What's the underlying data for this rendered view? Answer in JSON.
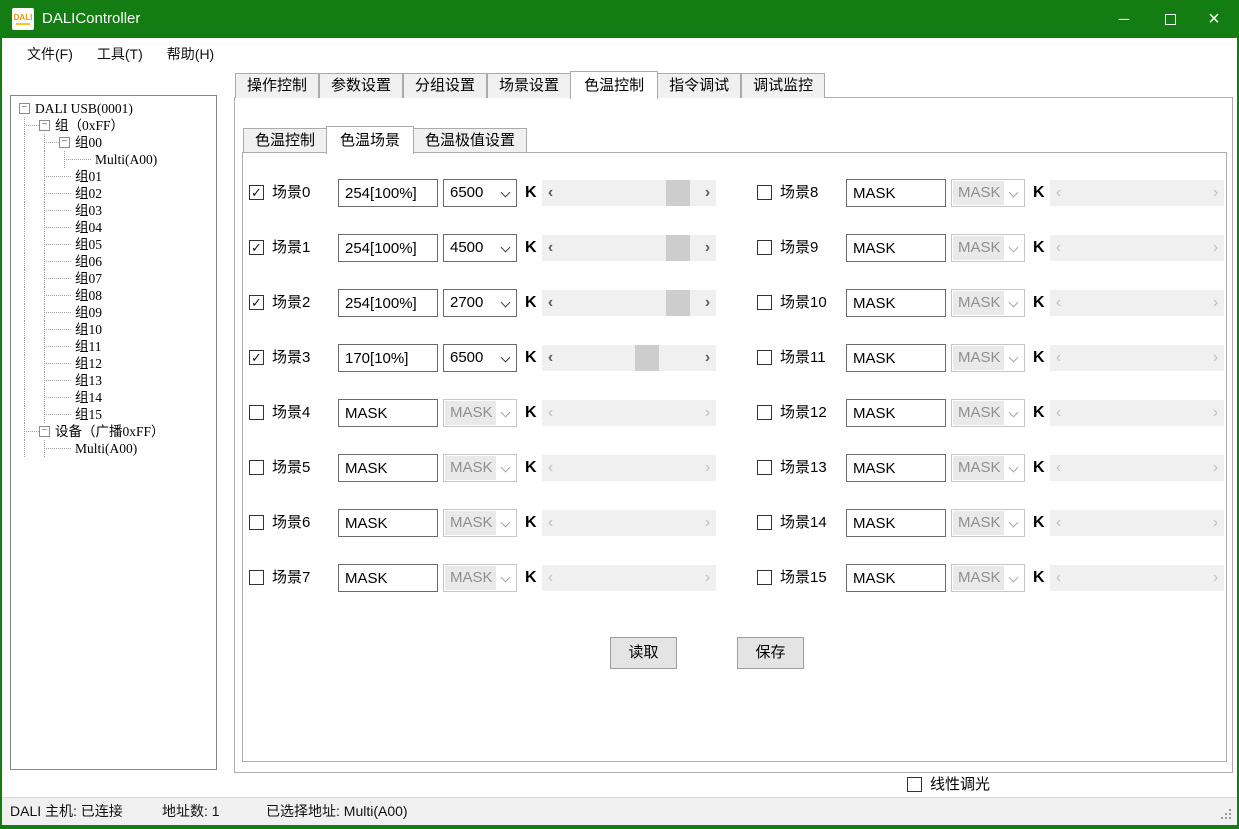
{
  "window": {
    "title": "DALIController",
    "logo_text": "DALI",
    "controls": {
      "minimize": "─",
      "close": "×"
    }
  },
  "menu": {
    "items": [
      "文件(F)",
      "工具(T)",
      "帮助(H)"
    ]
  },
  "tree": {
    "items": [
      {
        "label": "DALI USB(0001)",
        "depth": 0,
        "expander": true
      },
      {
        "label": "组（0xFF）",
        "depth": 1,
        "expander": true
      },
      {
        "label": "组00",
        "depth": 2,
        "expander": true
      },
      {
        "label": "Multi(A00)",
        "depth": 3,
        "expander": false
      },
      {
        "label": "组01",
        "depth": 2,
        "expander": false
      },
      {
        "label": "组02",
        "depth": 2,
        "expander": false
      },
      {
        "label": "组03",
        "depth": 2,
        "expander": false
      },
      {
        "label": "组04",
        "depth": 2,
        "expander": false
      },
      {
        "label": "组05",
        "depth": 2,
        "expander": false
      },
      {
        "label": "组06",
        "depth": 2,
        "expander": false
      },
      {
        "label": "组07",
        "depth": 2,
        "expander": false
      },
      {
        "label": "组08",
        "depth": 2,
        "expander": false
      },
      {
        "label": "组09",
        "depth": 2,
        "expander": false
      },
      {
        "label": "组10",
        "depth": 2,
        "expander": false
      },
      {
        "label": "组11",
        "depth": 2,
        "expander": false
      },
      {
        "label": "组12",
        "depth": 2,
        "expander": false
      },
      {
        "label": "组13",
        "depth": 2,
        "expander": false
      },
      {
        "label": "组14",
        "depth": 2,
        "expander": false
      },
      {
        "label": "组15",
        "depth": 2,
        "expander": false
      },
      {
        "label": "设备（广播0xFF）",
        "depth": 1,
        "expander": true
      },
      {
        "label": "Multi(A00)",
        "depth": 2,
        "expander": false
      }
    ]
  },
  "tabs": {
    "items": [
      "操作控制",
      "参数设置",
      "分组设置",
      "场景设置",
      "色温控制",
      "指令调试",
      "调试监控"
    ],
    "active_index": 4
  },
  "subtabs": {
    "items": [
      "色温控制",
      "色温场景",
      "色温极值设置"
    ],
    "active_index": 1
  },
  "panel": {
    "unit": "K",
    "scenes": [
      {
        "label": "场景0",
        "checked": true,
        "level": "254[100%]",
        "temp": "6500",
        "enabled": true,
        "scroll": 0.93
      },
      {
        "label": "场景1",
        "checked": true,
        "level": "254[100%]",
        "temp": "4500",
        "enabled": true,
        "scroll": 0.93
      },
      {
        "label": "场景2",
        "checked": true,
        "level": "254[100%]",
        "temp": "2700",
        "enabled": true,
        "scroll": 0.93
      },
      {
        "label": "场景3",
        "checked": true,
        "level": "170[10%]",
        "temp": "6500",
        "enabled": true,
        "scroll": 0.66
      },
      {
        "label": "场景4",
        "checked": false,
        "level": "MASK",
        "temp": "MASK",
        "enabled": false,
        "scroll": null
      },
      {
        "label": "场景5",
        "checked": false,
        "level": "MASK",
        "temp": "MASK",
        "enabled": false,
        "scroll": null
      },
      {
        "label": "场景6",
        "checked": false,
        "level": "MASK",
        "temp": "MASK",
        "enabled": false,
        "scroll": null
      },
      {
        "label": "场景7",
        "checked": false,
        "level": "MASK",
        "temp": "MASK",
        "enabled": false,
        "scroll": null
      },
      {
        "label": "场景8",
        "checked": false,
        "level": "MASK",
        "temp": "MASK",
        "enabled": false,
        "scroll": null
      },
      {
        "label": "场景9",
        "checked": false,
        "level": "MASK",
        "temp": "MASK",
        "enabled": false,
        "scroll": null
      },
      {
        "label": "场景10",
        "checked": false,
        "level": "MASK",
        "temp": "MASK",
        "enabled": false,
        "scroll": null
      },
      {
        "label": "场景11",
        "checked": false,
        "level": "MASK",
        "temp": "MASK",
        "enabled": false,
        "scroll": null
      },
      {
        "label": "场景12",
        "checked": false,
        "level": "MASK",
        "temp": "MASK",
        "enabled": false,
        "scroll": null
      },
      {
        "label": "场景13",
        "checked": false,
        "level": "MASK",
        "temp": "MASK",
        "enabled": false,
        "scroll": null
      },
      {
        "label": "场景14",
        "checked": false,
        "level": "MASK",
        "temp": "MASK",
        "enabled": false,
        "scroll": null
      },
      {
        "label": "场景15",
        "checked": false,
        "level": "MASK",
        "temp": "MASK",
        "enabled": false,
        "scroll": null
      }
    ]
  },
  "buttons": {
    "read": "读取",
    "save": "保存"
  },
  "footer": {
    "linear_dimming_label": "线性调光",
    "checked": false
  },
  "statusbar": {
    "host": "DALI 主机: 已连接",
    "address_count": "地址数: 1",
    "selected_address": "已选择地址: Multi(A00)"
  },
  "icons": {
    "expander_collapse": "−",
    "check": "✓",
    "scroll_left": "‹",
    "scroll_right": "›"
  },
  "colors": {
    "titlebar_green": "#137c13",
    "scrollbar_thumb": "#cdcdcd",
    "pane_border": "#acacac"
  }
}
